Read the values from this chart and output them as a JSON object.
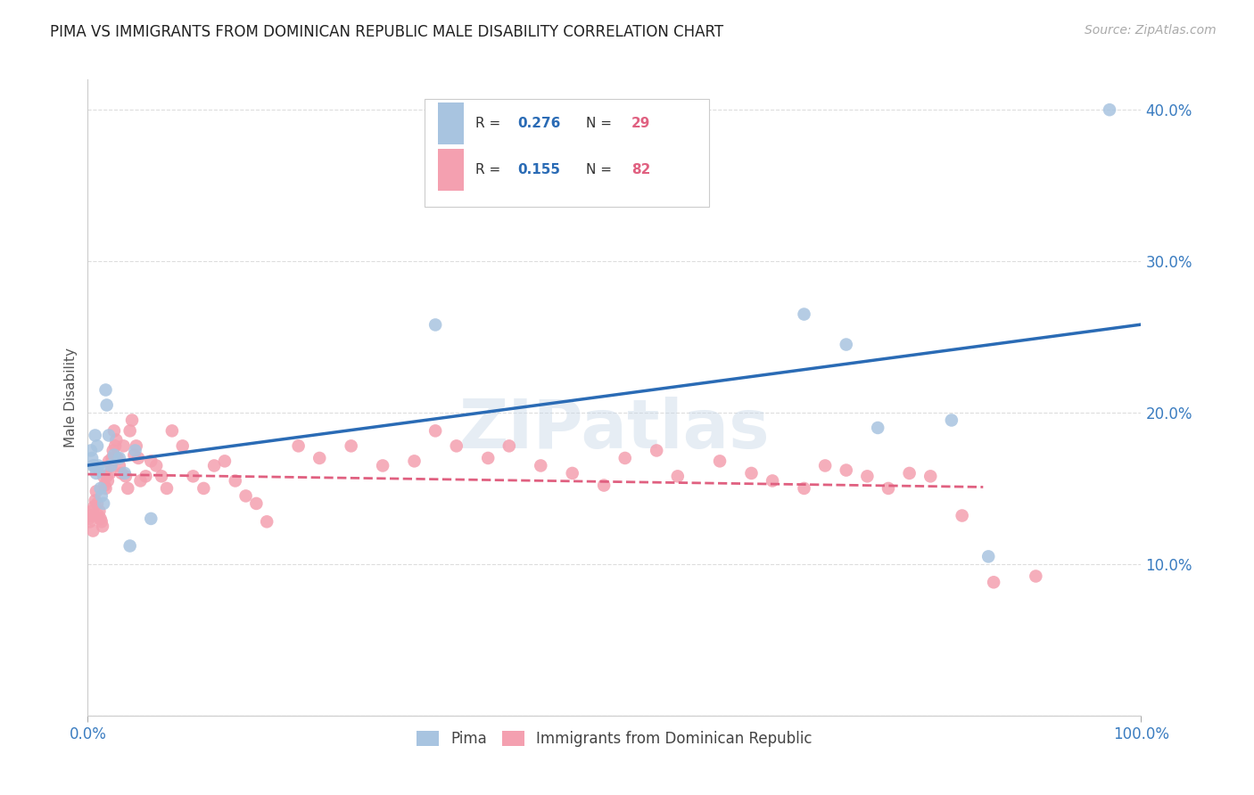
{
  "title": "PIMA VS IMMIGRANTS FROM DOMINICAN REPUBLIC MALE DISABILITY CORRELATION CHART",
  "source": "Source: ZipAtlas.com",
  "ylabel": "Male Disability",
  "xlim": [
    0,
    1.0
  ],
  "ylim": [
    0,
    0.42
  ],
  "pima_color": "#a8c4e0",
  "pima_line_color": "#2a6bb5",
  "dr_color": "#f4a0b0",
  "dr_line_color": "#e06080",
  "pima_R": 0.276,
  "pima_N": 29,
  "dr_R": 0.155,
  "dr_N": 82,
  "watermark": "ZIPatlas",
  "background_color": "#ffffff",
  "grid_color": "#dddddd",
  "pima_x": [
    0.003,
    0.004,
    0.005,
    0.006,
    0.007,
    0.008,
    0.009,
    0.01,
    0.011,
    0.012,
    0.013,
    0.015,
    0.017,
    0.018,
    0.02,
    0.022,
    0.025,
    0.03,
    0.035,
    0.04,
    0.045,
    0.06,
    0.33,
    0.68,
    0.72,
    0.75,
    0.82,
    0.855,
    0.97
  ],
  "pima_y": [
    0.175,
    0.17,
    0.165,
    0.165,
    0.185,
    0.16,
    0.178,
    0.165,
    0.162,
    0.15,
    0.145,
    0.14,
    0.215,
    0.205,
    0.185,
    0.165,
    0.172,
    0.17,
    0.16,
    0.112,
    0.175,
    0.13,
    0.258,
    0.265,
    0.245,
    0.19,
    0.195,
    0.105,
    0.4
  ],
  "dr_x": [
    0.001,
    0.002,
    0.003,
    0.004,
    0.005,
    0.006,
    0.007,
    0.008,
    0.009,
    0.01,
    0.011,
    0.012,
    0.013,
    0.014,
    0.015,
    0.016,
    0.017,
    0.018,
    0.019,
    0.02,
    0.021,
    0.022,
    0.023,
    0.024,
    0.025,
    0.026,
    0.027,
    0.028,
    0.03,
    0.032,
    0.034,
    0.036,
    0.038,
    0.04,
    0.042,
    0.044,
    0.046,
    0.048,
    0.05,
    0.055,
    0.06,
    0.065,
    0.07,
    0.075,
    0.08,
    0.09,
    0.1,
    0.11,
    0.12,
    0.13,
    0.14,
    0.15,
    0.16,
    0.17,
    0.2,
    0.22,
    0.25,
    0.28,
    0.31,
    0.33,
    0.35,
    0.38,
    0.4,
    0.43,
    0.46,
    0.49,
    0.51,
    0.54,
    0.56,
    0.6,
    0.63,
    0.65,
    0.68,
    0.7,
    0.72,
    0.74,
    0.76,
    0.78,
    0.8,
    0.83,
    0.86,
    0.9
  ],
  "dr_y": [
    0.13,
    0.128,
    0.132,
    0.135,
    0.122,
    0.138,
    0.142,
    0.148,
    0.14,
    0.132,
    0.135,
    0.13,
    0.128,
    0.125,
    0.158,
    0.152,
    0.15,
    0.158,
    0.155,
    0.168,
    0.16,
    0.165,
    0.17,
    0.175,
    0.188,
    0.178,
    0.182,
    0.17,
    0.165,
    0.16,
    0.178,
    0.158,
    0.15,
    0.188,
    0.195,
    0.172,
    0.178,
    0.17,
    0.155,
    0.158,
    0.168,
    0.165,
    0.158,
    0.15,
    0.188,
    0.178,
    0.158,
    0.15,
    0.165,
    0.168,
    0.155,
    0.145,
    0.14,
    0.128,
    0.178,
    0.17,
    0.178,
    0.165,
    0.168,
    0.188,
    0.178,
    0.17,
    0.178,
    0.165,
    0.16,
    0.152,
    0.17,
    0.175,
    0.158,
    0.168,
    0.16,
    0.155,
    0.15,
    0.165,
    0.162,
    0.158,
    0.15,
    0.16,
    0.158,
    0.132,
    0.088,
    0.092
  ]
}
